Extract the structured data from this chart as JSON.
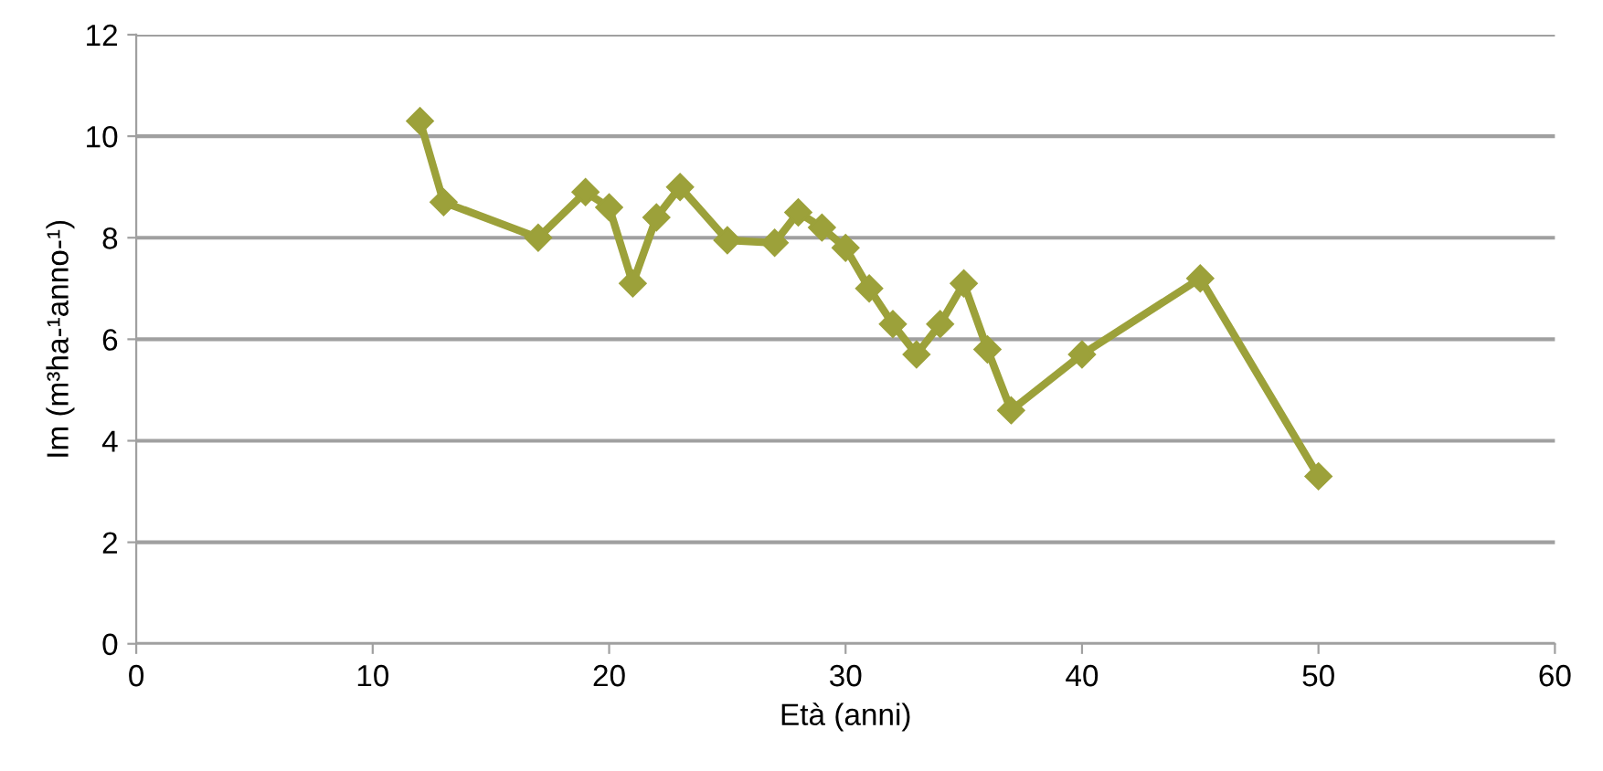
{
  "chart_data": {
    "type": "line",
    "xlabel": "Età (anni)",
    "ylabel": "Im (m³ha-¹anno-¹)",
    "x": [
      12,
      13,
      17,
      19,
      20,
      21,
      22,
      23,
      25,
      27,
      28,
      29,
      30,
      31,
      32,
      33,
      34,
      35,
      36,
      37,
      40,
      45,
      50
    ],
    "series": [
      {
        "color": "#9ca13a",
        "values": [
          10.3,
          8.7,
          8.0,
          8.9,
          8.6,
          7.1,
          8.4,
          9.0,
          7.95,
          7.9,
          8.5,
          8.2,
          7.8,
          7.0,
          6.3,
          5.7,
          6.3,
          7.1,
          5.8,
          4.6,
          5.7,
          7.2,
          3.3
        ]
      }
    ],
    "xlim": [
      0,
      60
    ],
    "xticks": [
      0,
      10,
      20,
      30,
      40,
      50,
      60
    ],
    "ylim": [
      0,
      12
    ],
    "yticks": [
      0,
      2,
      4,
      6,
      8,
      10,
      12
    ],
    "grid": "y",
    "marker": "diamond",
    "line_style": "solid",
    "legend": false
  }
}
